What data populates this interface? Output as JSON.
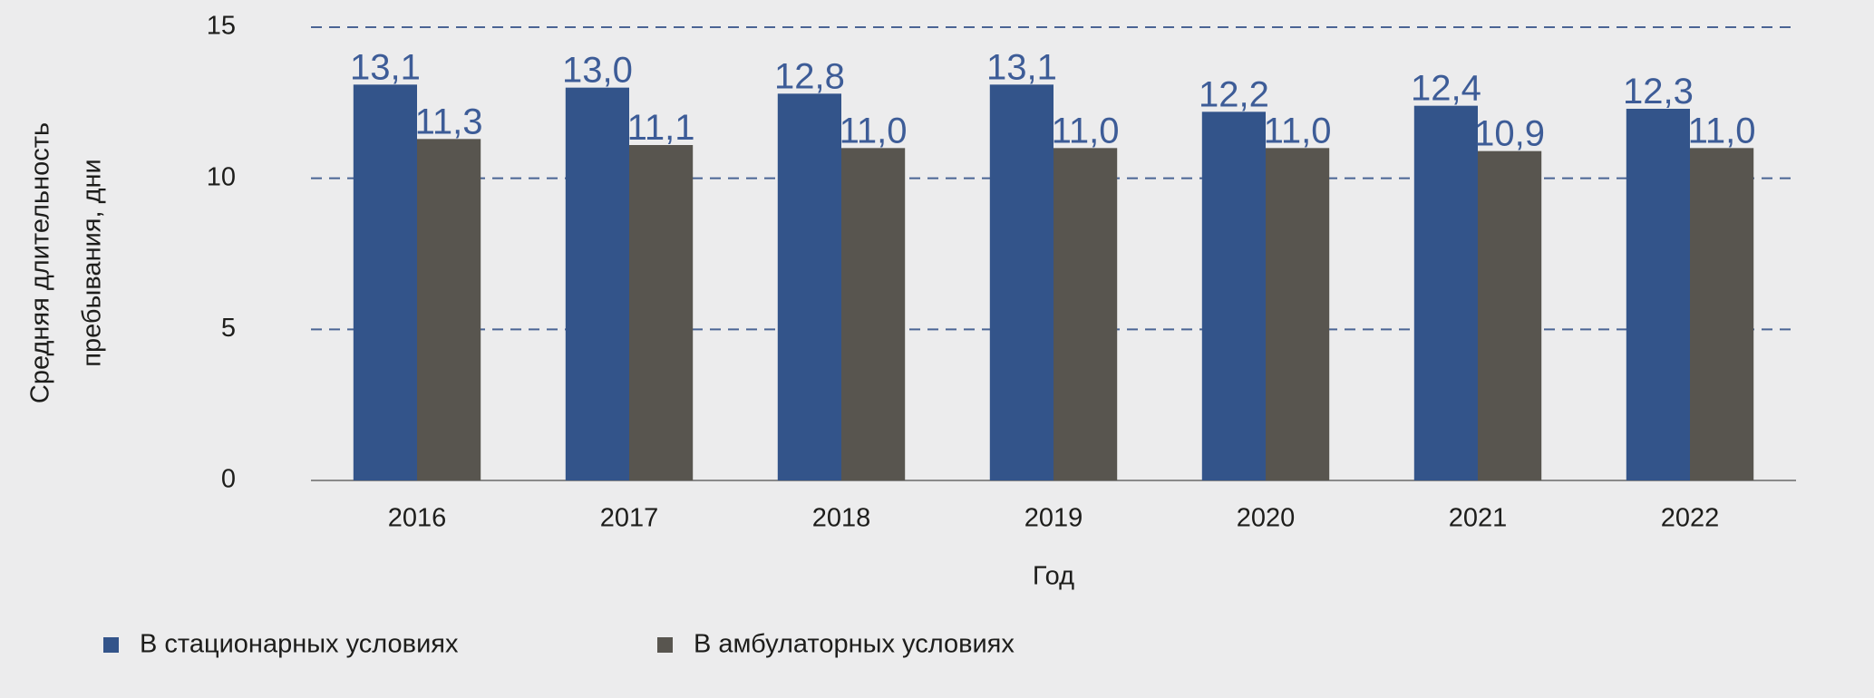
{
  "chart_data": {
    "type": "bar",
    "ylabel": [
      "Средняя  длительность",
      "пребывания,  дни"
    ],
    "xlabel": "Год",
    "categories": [
      "2016",
      "2017",
      "2018",
      "2019",
      "2020",
      "2021",
      "2022"
    ],
    "series": [
      {
        "name": "В стационарных условиях",
        "color": "#33548a",
        "values": [
          13.1,
          13.0,
          12.8,
          13.1,
          12.2,
          12.4,
          12.3
        ],
        "value_labels": [
          "13,1",
          "13,0",
          "12,8",
          "13,1",
          "12,2",
          "12,4",
          "12,3"
        ]
      },
      {
        "name": "В амбулаторных условиях",
        "color": "#58554f",
        "values": [
          11.3,
          11.1,
          11.0,
          11.0,
          11.0,
          10.9,
          11.0
        ],
        "value_labels": [
          "11,3",
          "11,1",
          "11,0",
          "11,0",
          "11,0",
          "10,9",
          "11,0"
        ]
      }
    ],
    "ylim": [
      0,
      15
    ],
    "yticks": [
      0,
      5,
      10,
      15
    ],
    "grid": true,
    "legend": "bottom-left"
  }
}
